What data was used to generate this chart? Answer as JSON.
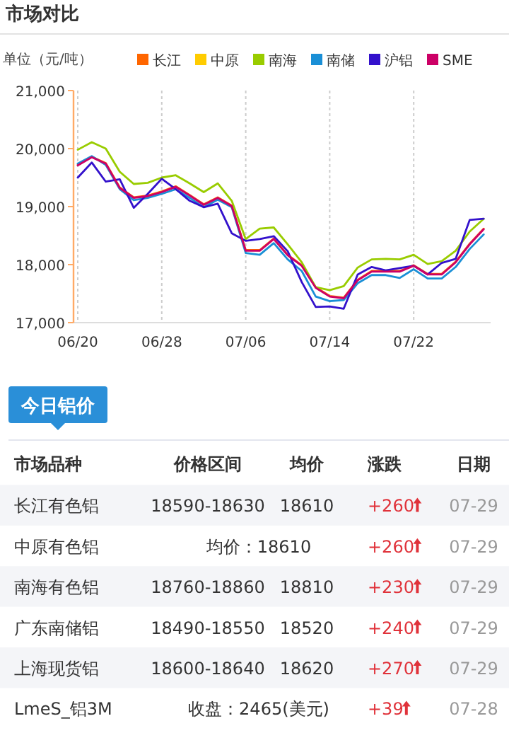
{
  "chart_data": [
    {
      "type": "line",
      "title": "市场对比",
      "ylabel": "单位（元/吨）",
      "categories": [
        "06/20",
        null,
        null,
        null,
        null,
        null,
        "06/28",
        null,
        null,
        null,
        null,
        null,
        "07/06",
        null,
        null,
        null,
        null,
        null,
        "07/14",
        null,
        null,
        null,
        null,
        null,
        "07/22",
        null,
        null,
        null,
        null,
        null
      ],
      "ylim": [
        17000,
        21000
      ],
      "yticks": [
        {
          "value": 17000,
          "label": "17,000"
        },
        {
          "value": 18000,
          "label": "18,000"
        },
        {
          "value": 19000,
          "label": "19,000"
        },
        {
          "value": 20000,
          "label": "20,000"
        },
        {
          "value": 21000,
          "label": "21,000"
        }
      ],
      "grid": "x",
      "legend": "top right",
      "marker": "none",
      "line_style": "solid",
      "series": [
        {
          "name": "长江",
          "color": "#ff6600",
          "values": [
            19720,
            19860,
            19750,
            19330,
            19160,
            19190,
            19260,
            19350,
            19200,
            19040,
            19160,
            19020,
            18250,
            18250,
            18450,
            18170,
            17990,
            17610,
            17460,
            17430,
            17740,
            17890,
            17890,
            17890,
            17990,
            17840,
            17840,
            18050,
            18360,
            18620
          ]
        },
        {
          "name": "中原",
          "color": "#ffcc00",
          "values": [
            null,
            null,
            null,
            null,
            null,
            null,
            null,
            null,
            null,
            null,
            null,
            null,
            null,
            null,
            null,
            null,
            null,
            null,
            null,
            null,
            null,
            null,
            null,
            null,
            null,
            null,
            null,
            null,
            null,
            null
          ]
        },
        {
          "name": "南海",
          "color": "#99cc00",
          "values": [
            19980,
            20110,
            20000,
            19600,
            19390,
            19410,
            19500,
            19540,
            19400,
            19250,
            19400,
            19100,
            18440,
            18620,
            18640,
            18350,
            18040,
            17610,
            17560,
            17630,
            17950,
            18090,
            18100,
            18090,
            18170,
            18010,
            18060,
            18240,
            18570,
            18790
          ]
        },
        {
          "name": "南储",
          "color": "#1a8fd6",
          "values": [
            19740,
            19870,
            19720,
            19300,
            19110,
            19150,
            19220,
            19300,
            19150,
            18990,
            19120,
            18990,
            18200,
            18170,
            18370,
            18090,
            17890,
            17450,
            17370,
            17390,
            17680,
            17820,
            17820,
            17770,
            17920,
            17760,
            17760,
            17960,
            18270,
            18520
          ]
        },
        {
          "name": "沪铝",
          "color": "#3311cc",
          "values": [
            19500,
            19760,
            19430,
            19470,
            18980,
            19220,
            19480,
            19300,
            19100,
            18990,
            19050,
            18540,
            18410,
            18440,
            18490,
            18230,
            17700,
            17270,
            17280,
            17240,
            17830,
            17960,
            17900,
            17940,
            17980,
            17830,
            18030,
            18100,
            18770,
            18790
          ]
        },
        {
          "name": "SME",
          "color": "#cc0066",
          "values": [
            19710,
            19850,
            19740,
            19320,
            19150,
            19180,
            19250,
            19340,
            19190,
            19030,
            19150,
            19010,
            18240,
            18240,
            18440,
            18160,
            17980,
            17600,
            17450,
            17420,
            17730,
            17880,
            17880,
            17880,
            17980,
            17830,
            17830,
            18040,
            18350,
            18610
          ]
        }
      ]
    },
    {
      "type": "other",
      "title": "今日铝价",
      "categories": [
        "市场品种",
        "价格区间",
        "均价",
        "涨跌",
        "日期"
      ],
      "cell_labels": [
        [
          "长江有色铝",
          "18590-18630",
          "18610",
          "+260",
          "07-29"
        ],
        [
          "中原有色铝",
          "均价：18610",
          null,
          "+260",
          "07-29"
        ],
        [
          "南海有色铝",
          "18760-18860",
          "18810",
          "+230",
          "07-29"
        ],
        [
          "广东南储铝",
          "18490-18550",
          "18520",
          "+240",
          "07-29"
        ],
        [
          "上海现货铝",
          "18600-18640",
          "18620",
          "+270",
          "07-29"
        ],
        [
          "LmeS_铝3M",
          "收盘：2465(美元)",
          null,
          "+39",
          "07-28"
        ]
      ]
    }
  ]
}
